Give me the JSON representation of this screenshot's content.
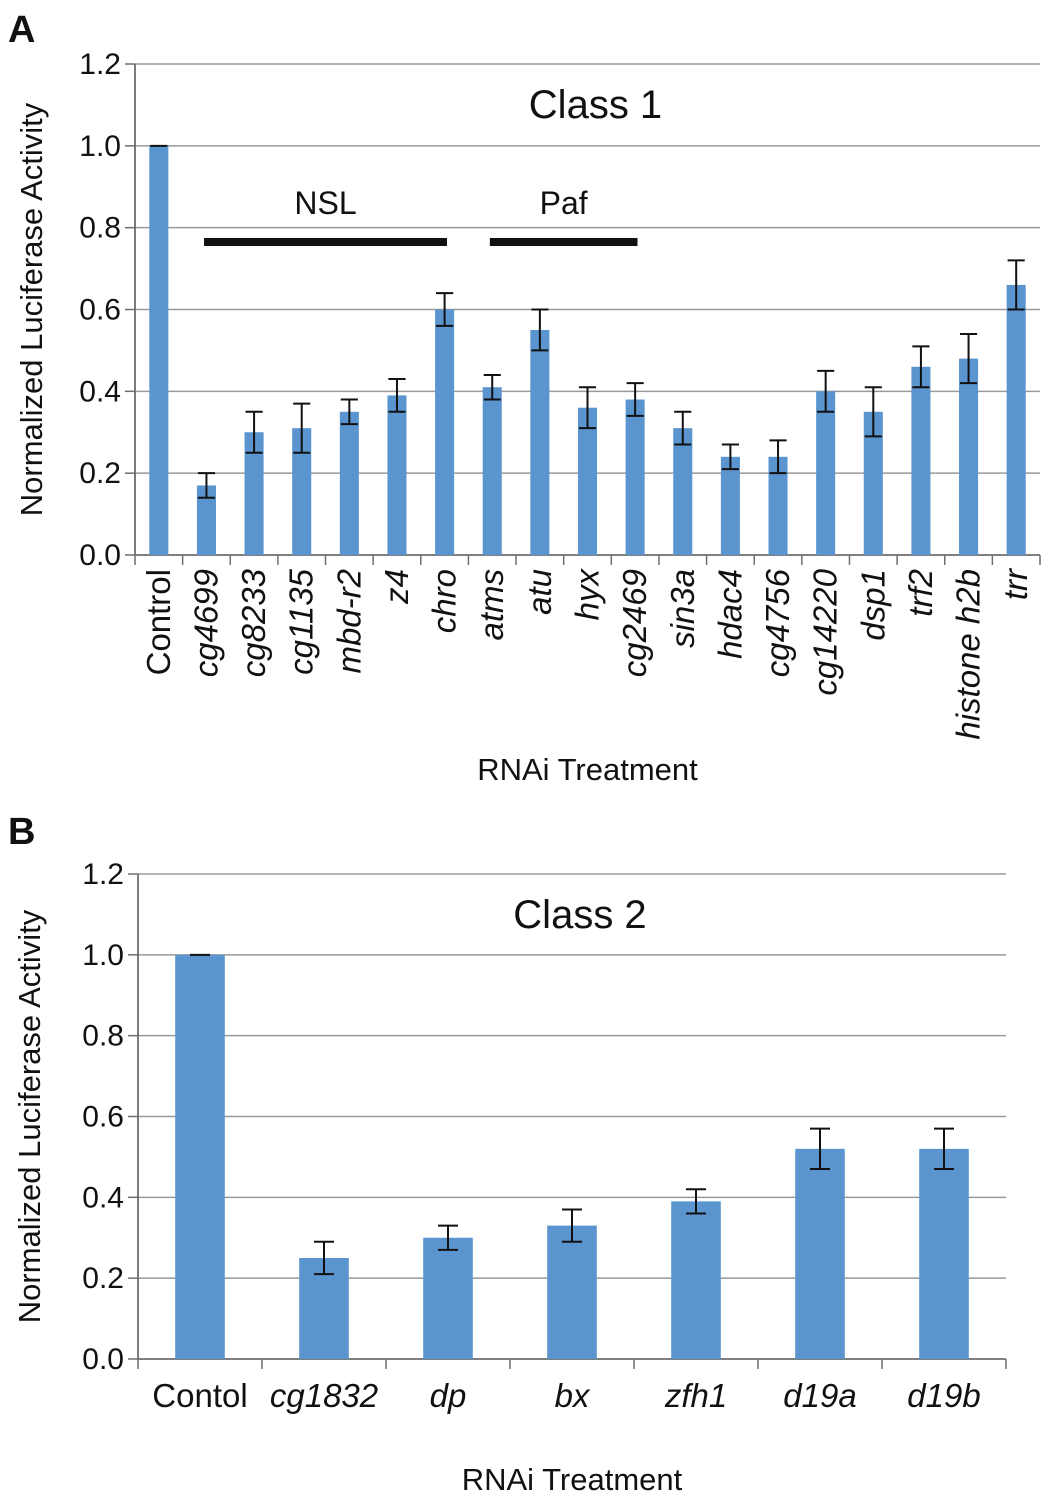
{
  "chart_data": [
    {
      "panel": "A",
      "type": "bar",
      "title": "Class 1",
      "xlabel": "RNAi Treatment",
      "ylabel": "Normalized Luciferase Activity",
      "ylim": [
        0,
        1.2
      ],
      "yticks": [
        "0.0",
        "0.2",
        "0.4",
        "0.6",
        "0.8",
        "1.0",
        "1.2"
      ],
      "grid": true,
      "bar_color": "#5b95cf",
      "categories": [
        "Control",
        "cg4699",
        "cg8233",
        "cg1135",
        "mbd-r2",
        "z4",
        "chro",
        "atms",
        "atu",
        "hyx",
        "cg2469",
        "sin3a",
        "hdac4",
        "cg4756",
        "cg14220",
        "dsp1",
        "trf2",
        "histone h2b",
        "trr"
      ],
      "italic": [
        false,
        true,
        true,
        true,
        true,
        true,
        true,
        true,
        true,
        true,
        true,
        true,
        true,
        true,
        true,
        true,
        true,
        true,
        true
      ],
      "values": [
        1.0,
        0.17,
        0.3,
        0.31,
        0.35,
        0.39,
        0.6,
        0.41,
        0.55,
        0.36,
        0.38,
        0.31,
        0.24,
        0.24,
        0.4,
        0.35,
        0.46,
        0.48,
        0.66
      ],
      "errors": [
        0.0,
        0.03,
        0.05,
        0.06,
        0.03,
        0.04,
        0.04,
        0.03,
        0.05,
        0.05,
        0.04,
        0.04,
        0.03,
        0.04,
        0.05,
        0.06,
        0.05,
        0.06,
        0.06
      ],
      "groups": [
        {
          "label": "NSL",
          "from": 1,
          "to": 6,
          "y": 0.765
        },
        {
          "label": "Paf",
          "from": 7,
          "to": 10,
          "y": 0.765
        }
      ]
    },
    {
      "panel": "B",
      "type": "bar",
      "title": "Class 2",
      "xlabel": "RNAi Treatment",
      "ylabel": "Normalized Luciferase Activity",
      "ylim": [
        0,
        1.2
      ],
      "yticks": [
        "0.0",
        "0.2",
        "0.4",
        "0.6",
        "0.8",
        "1.0",
        "1.2"
      ],
      "grid": true,
      "bar_color": "#5b95cf",
      "categories": [
        "Contol",
        "cg1832",
        "dp",
        "bx",
        "zfh1",
        "d19a",
        "d19b"
      ],
      "italic": [
        false,
        true,
        true,
        true,
        true,
        true,
        true
      ],
      "values": [
        1.0,
        0.25,
        0.3,
        0.33,
        0.39,
        0.52,
        0.52
      ],
      "errors": [
        0.0,
        0.04,
        0.03,
        0.04,
        0.03,
        0.05,
        0.05
      ],
      "groups": []
    }
  ]
}
